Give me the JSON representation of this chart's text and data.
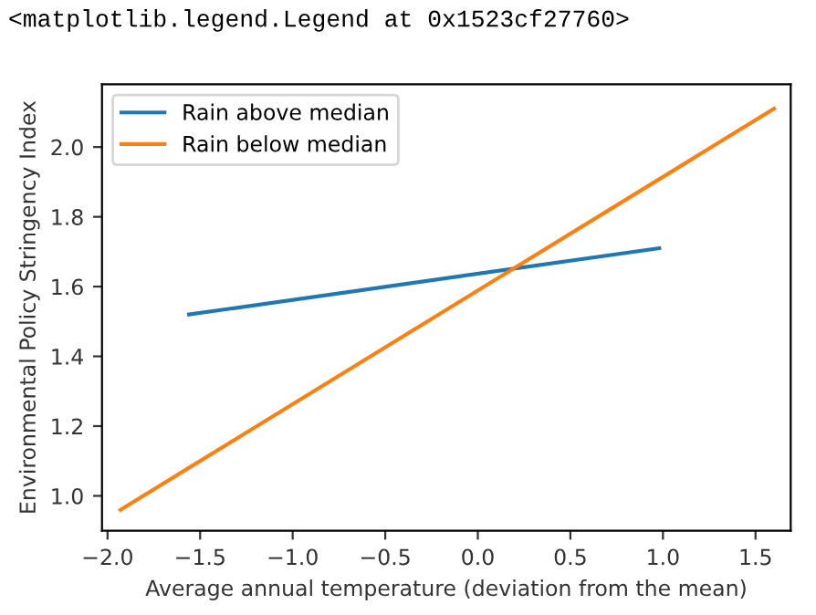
{
  "chart_data": {
    "type": "line",
    "xlabel": "Average annual temperature (deviation from the mean)",
    "ylabel": "Environmental Policy Stringency Index",
    "annotations": [
      "<matplotlib.legend.Legend at 0x1523cf27760>"
    ],
    "series": [
      {
        "name": "Rain above median",
        "color": "#1f77b4",
        "x": [
          -1.56,
          0.98
        ],
        "values": [
          1.52,
          1.71
        ]
      },
      {
        "name": "Rain below median",
        "color": "#ff7f0e",
        "x": [
          -1.93,
          1.6
        ],
        "values": [
          0.96,
          2.11
        ]
      }
    ],
    "xlim": [
      -2.03,
      1.69
    ],
    "ylim": [
      0.9,
      2.18
    ],
    "xticks": [
      {
        "value": -2.0,
        "label": "−2.0"
      },
      {
        "value": -1.5,
        "label": "−1.5"
      },
      {
        "value": -1.0,
        "label": "−1.0"
      },
      {
        "value": -0.5,
        "label": "−0.5"
      },
      {
        "value": 0.0,
        "label": "0.0"
      },
      {
        "value": 0.5,
        "label": "0.5"
      },
      {
        "value": 1.0,
        "label": "1.0"
      },
      {
        "value": 1.5,
        "label": "1.5"
      }
    ],
    "yticks": [
      {
        "value": 1.0,
        "label": "1.0"
      },
      {
        "value": 1.2,
        "label": "1.2"
      },
      {
        "value": 1.4,
        "label": "1.4"
      },
      {
        "value": 1.6,
        "label": "1.6"
      },
      {
        "value": 1.8,
        "label": "1.8"
      },
      {
        "value": 2.0,
        "label": "2.0"
      }
    ],
    "grid": false,
    "legend": "top left",
    "marker": "none",
    "line_style": "solid"
  }
}
